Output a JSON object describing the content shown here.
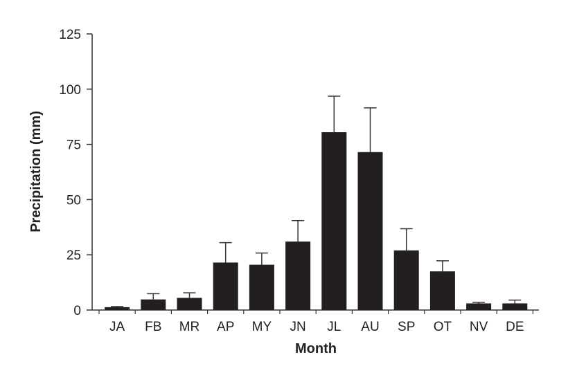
{
  "chart_data": {
    "type": "bar",
    "title": "",
    "xlabel": "Month",
    "ylabel": "Precipitation (mm)",
    "categories": [
      "JA",
      "FB",
      "MR",
      "AP",
      "MY",
      "JN",
      "JL",
      "AU",
      "SP",
      "OT",
      "NV",
      "DE"
    ],
    "values": [
      1.3,
      4.8,
      5.5,
      21.5,
      20.5,
      31,
      80.5,
      71.5,
      27,
      17.5,
      3,
      3
    ],
    "error_upper": [
      1.6,
      7.4,
      7.8,
      30.5,
      25.8,
      40.5,
      96.8,
      91.5,
      36.8,
      22.3,
      3.5,
      4.5
    ],
    "ylim": [
      0,
      125
    ],
    "yticks": [
      0,
      25,
      50,
      75,
      100,
      125
    ],
    "grid": false,
    "bar_color": "#231f20",
    "axis_color": "#333333"
  }
}
